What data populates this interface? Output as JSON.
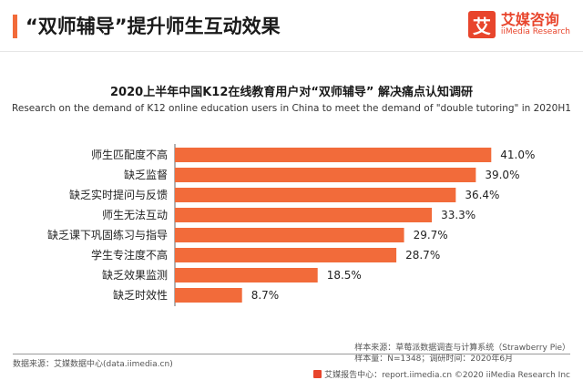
{
  "header": {
    "headline": "“双师辅导”提升师生互动效果",
    "logo_mark": "艾",
    "logo_cn": "艾媒咨询",
    "logo_en": "iiMedia Research"
  },
  "colors": {
    "accent": "#f26b3a",
    "brand": "#e8452c",
    "bar": "#f26b3a"
  },
  "chart_data": {
    "type": "bar",
    "orientation": "horizontal",
    "title": "2020上半年中国K12在线教育用户对“双师辅导” 解决痛点认知调研",
    "subtitle": "Research on the demand of K12 online education users in China to meet the demand of \"double tutoring\" in 2020H1",
    "categories": [
      "师生匹配度不高",
      "缺乏监督",
      "缺乏实时提问与反馈",
      "师生无法互动",
      "缺乏课下巩固练习与指导",
      "学生专注度不高",
      "缺乏效果监测",
      "缺乏时效性"
    ],
    "values": [
      41.0,
      39.0,
      36.4,
      33.3,
      29.7,
      28.7,
      18.5,
      8.7
    ],
    "value_labels": [
      "41.0%",
      "39.0%",
      "36.4%",
      "33.3%",
      "29.7%",
      "28.7%",
      "18.5%",
      "8.7%"
    ],
    "xlim": [
      0,
      45
    ],
    "grid": false,
    "legend": "none"
  },
  "sources": {
    "left": "数据来源：艾媒数据中心(data.iimedia.cn)",
    "right_line1": "样本来源：草莓派数据调查与计算系统（Strawberry Pie）",
    "right_line2": "样本量：N=1348；调研时间：2020年6月"
  },
  "footer": "艾媒报告中心：report.iimedia.cn  ©2020  iiMedia Research Inc"
}
